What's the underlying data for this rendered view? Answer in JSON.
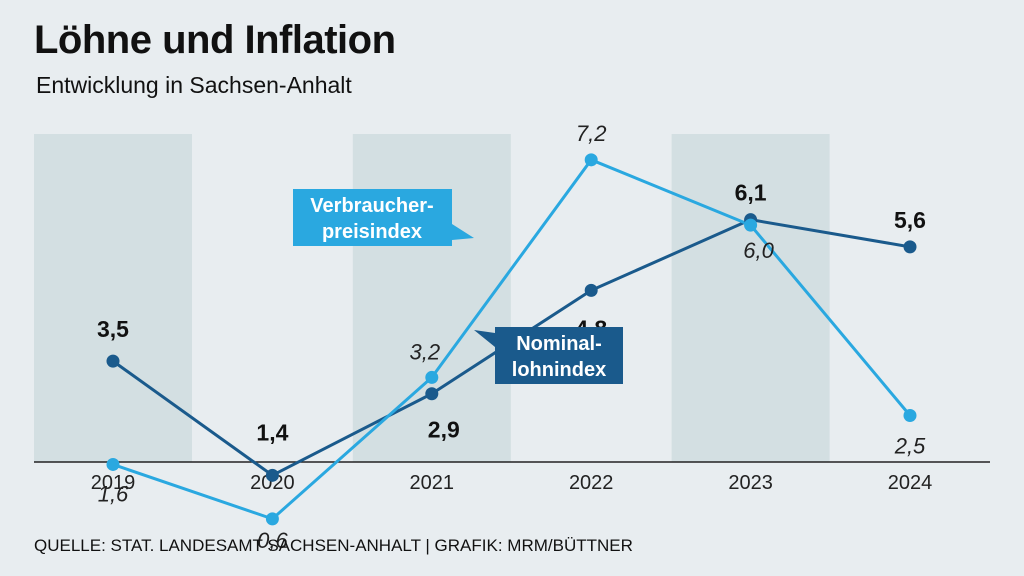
{
  "title": "Löhne und Inflation",
  "subtitle": "Entwicklung in Sachsen-Anhalt",
  "source": "QUELLE: STAT. LANDESAMT SACHSEN-ANHALT | GRAFIK: MRM/BÜTTNER",
  "colors": {
    "background": "#e8edf0",
    "band": "#d3dfe2",
    "nominal": "#1a5a8c",
    "cpi": "#2aa8e0",
    "axis": "#222222"
  },
  "chart_data": {
    "type": "line",
    "title": "Löhne und Inflation",
    "subtitle": "Entwicklung in Sachsen-Anhalt",
    "categories": [
      "2019",
      "2020",
      "2021",
      "2022",
      "2023",
      "2024"
    ],
    "ylim": [
      0,
      8
    ],
    "series": [
      {
        "name": "Nominallohnindex",
        "label_lines": [
          "Nominal-",
          "lohnindex"
        ],
        "values": [
          3.5,
          1.4,
          2.9,
          4.8,
          6.1,
          5.6
        ],
        "value_labels": [
          "3,5",
          "1,4",
          "2,9",
          "4,8",
          "6,1",
          "5,6"
        ]
      },
      {
        "name": "Verbraucherpreisindex",
        "label_lines": [
          "Verbraucher-",
          "preisindex"
        ],
        "values": [
          1.6,
          0.6,
          3.2,
          7.2,
          6.0,
          2.5
        ],
        "value_labels": [
          "1,6",
          "0,6",
          "3,2",
          "7,2",
          "6,0",
          "2,5"
        ]
      }
    ],
    "shaded_years": [
      "2019",
      "2021",
      "2023"
    ]
  }
}
